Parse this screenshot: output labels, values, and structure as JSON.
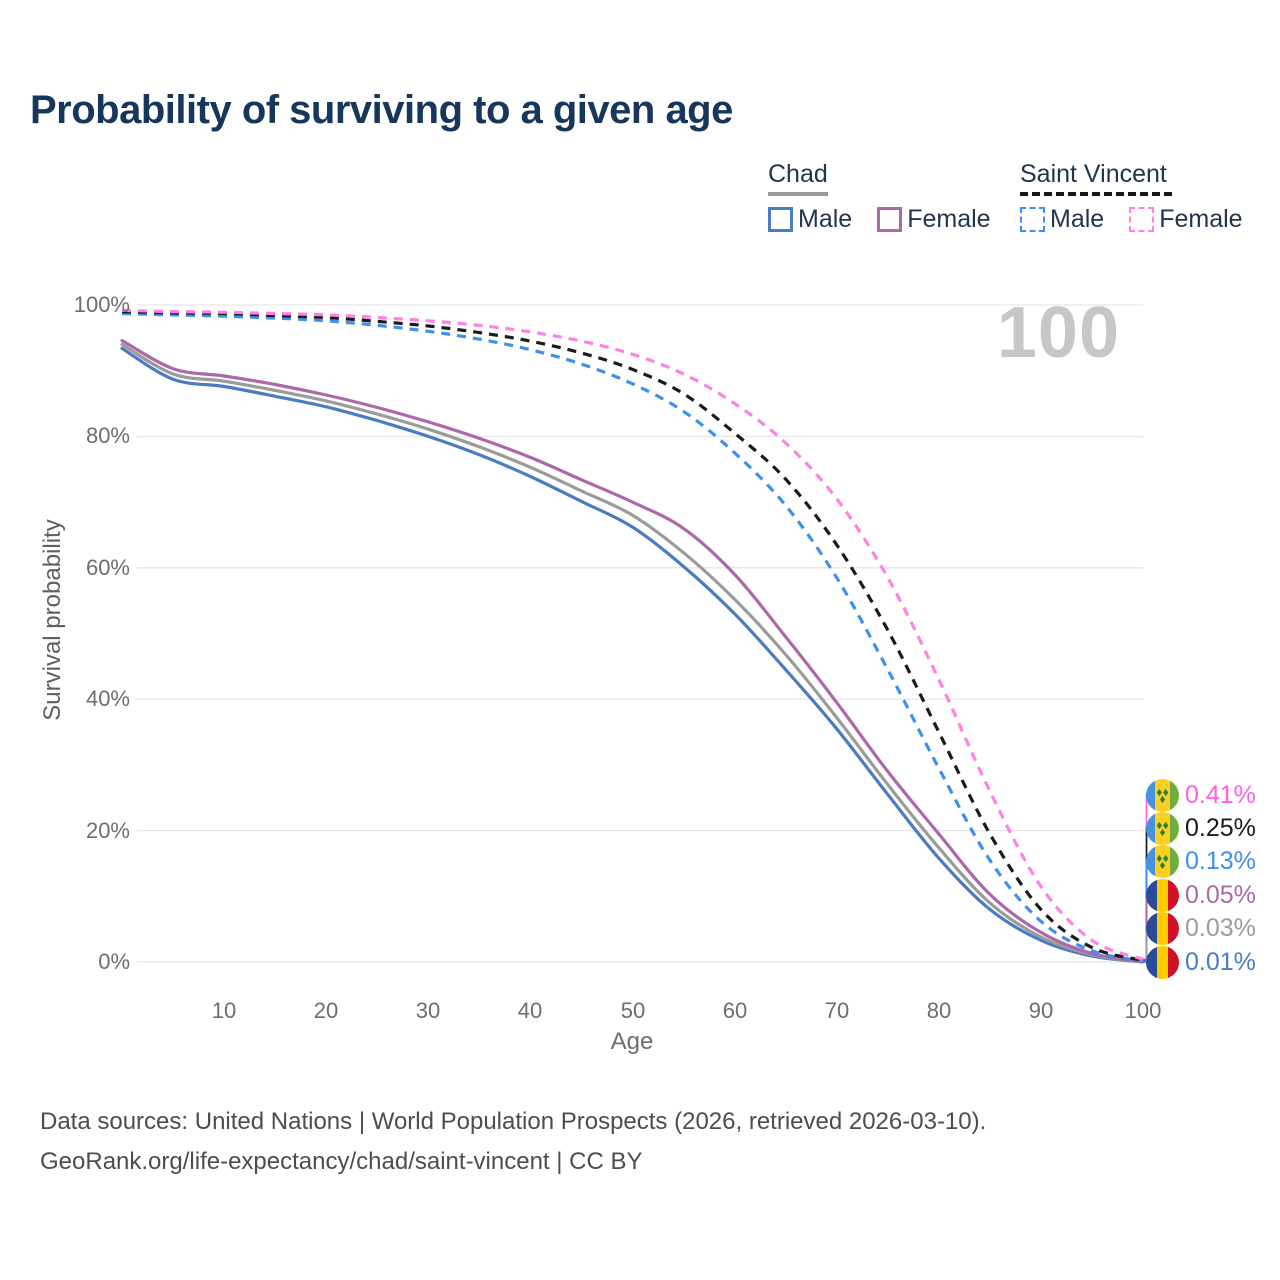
{
  "title": "Probability of surviving to a given age",
  "watermark": "100",
  "legend": {
    "groups": [
      {
        "label": "Chad",
        "line_style": "solid",
        "underline_color": "#9b9b9b",
        "items": [
          {
            "label": "Male",
            "color": "#4a7cc2"
          },
          {
            "label": "Female",
            "color": "#ac68a8"
          }
        ]
      },
      {
        "label": "Saint Vincent",
        "line_style": "dashed",
        "underline_color": "#161616",
        "items": [
          {
            "label": "Male",
            "color": "#3e90f0"
          },
          {
            "label": "Female",
            "color": "#ff82e2"
          }
        ]
      }
    ]
  },
  "yaxis": {
    "label": "Survival probability",
    "ticks": [
      "100%",
      "80%",
      "60%",
      "40%",
      "20%",
      "0%"
    ]
  },
  "xaxis": {
    "label": "Age",
    "ticks": [
      "10",
      "20",
      "30",
      "40",
      "50",
      "60",
      "70",
      "80",
      "90",
      "100"
    ]
  },
  "end_labels": [
    {
      "value": "0.41%",
      "color": "#ff5fe0",
      "flag": "saint-vincent",
      "series": "Saint Vincent Female"
    },
    {
      "value": "0.25%",
      "color": "#1b1b1b",
      "flag": "saint-vincent",
      "series": "Saint Vincent Both sexes"
    },
    {
      "value": "0.13%",
      "color": "#3e90f0",
      "flag": "saint-vincent",
      "series": "Saint Vincent Male"
    },
    {
      "value": "0.05%",
      "color": "#ac68a8",
      "flag": "chad",
      "series": "Chad Female"
    },
    {
      "value": "0.03%",
      "color": "#9b9b9b",
      "flag": "chad",
      "series": "Chad Both sexes"
    },
    {
      "value": "0.01%",
      "color": "#4a7cc2",
      "flag": "chad",
      "series": "Chad Male"
    }
  ],
  "footer": {
    "line1": "Data sources: United Nations | World Population Prospects (2026, retrieved 2026-03-10).",
    "line2": "GeoRank.org/life-expectancy/chad/saint-vincent | CC BY"
  },
  "chart_data": {
    "type": "line",
    "title": "Probability of surviving to a given age",
    "xlabel": "Age",
    "ylabel": "Survival probability",
    "xlim": [
      0,
      100
    ],
    "ylim": [
      0,
      100
    ],
    "grid": "horizontal",
    "legend_position": "top-right",
    "x": [
      0,
      5,
      10,
      15,
      20,
      25,
      30,
      35,
      40,
      45,
      50,
      55,
      60,
      65,
      70,
      75,
      80,
      85,
      90,
      95,
      100
    ],
    "series": [
      {
        "name": "Chad Male",
        "color": "#4a7cc2",
        "dash": "solid",
        "values": [
          93.4,
          88.7,
          87.6,
          86.1,
          84.5,
          82.4,
          80.0,
          77.2,
          73.9,
          70.1,
          66.2,
          60.2,
          53.0,
          44.5,
          35.5,
          25.5,
          15.8,
          8.0,
          3.3,
          0.9,
          0.01
        ]
      },
      {
        "name": "Chad Both sexes",
        "color": "#9b9b9b",
        "dash": "solid",
        "values": [
          94.0,
          89.5,
          88.4,
          87.0,
          85.4,
          83.4,
          81.1,
          78.4,
          75.3,
          71.7,
          68.0,
          62.3,
          55.2,
          46.8,
          37.2,
          27.0,
          17.4,
          9.0,
          3.8,
          1.1,
          0.03
        ]
      },
      {
        "name": "Chad Female",
        "color": "#ac68a8",
        "dash": "solid",
        "values": [
          94.6,
          90.3,
          89.2,
          87.9,
          86.3,
          84.4,
          82.2,
          79.7,
          76.8,
          73.4,
          70.0,
          66.0,
          59.0,
          49.5,
          39.5,
          29.0,
          19.5,
          10.3,
          4.5,
          1.3,
          0.05
        ]
      },
      {
        "name": "Saint Vincent Male",
        "color": "#3e90f0",
        "dash": "dashed",
        "values": [
          98.7,
          98.5,
          98.3,
          98.0,
          97.6,
          96.9,
          96.0,
          94.8,
          93.2,
          91.0,
          88.0,
          83.8,
          77.5,
          69.5,
          58.5,
          44.5,
          29.5,
          15.5,
          6.2,
          1.7,
          0.13
        ]
      },
      {
        "name": "Saint Vincent Both sexes",
        "color": "#1b1b1b",
        "dash": "dashed",
        "values": [
          99.0,
          98.8,
          98.7,
          98.4,
          98.1,
          97.5,
          96.8,
          95.8,
          94.5,
          92.7,
          90.2,
          86.5,
          80.5,
          73.5,
          63.5,
          50.5,
          35.0,
          19.5,
          8.0,
          2.2,
          0.25
        ]
      },
      {
        "name": "Saint Vincent Female",
        "color": "#ff82e2",
        "dash": "dashed",
        "values": [
          99.2,
          99.0,
          98.9,
          98.7,
          98.5,
          98.1,
          97.6,
          96.9,
          95.9,
          94.5,
          92.5,
          89.5,
          85.0,
          79.0,
          70.5,
          58.5,
          43.0,
          26.0,
          11.5,
          3.3,
          0.41
        ]
      }
    ]
  }
}
